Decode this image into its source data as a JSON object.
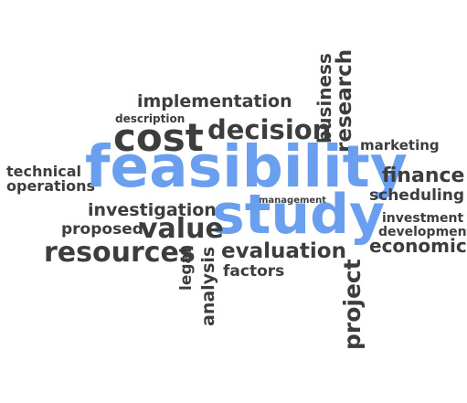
{
  "words": {
    "implementation": "implementation",
    "description": "description",
    "cost": "cost",
    "decision": "decision",
    "business": "business",
    "research": "research",
    "marketing": "marketing",
    "technical": "technical",
    "operations": "operations",
    "feasibility": "feasibility",
    "finance": "finance",
    "management": "management",
    "scheduling": "scheduling",
    "investigation": "investigation",
    "study": "study",
    "investment": "investment",
    "proposed": "proposed",
    "value": "value",
    "development": "development",
    "economic": "economic",
    "resources": "resources",
    "evaluation": "evaluation",
    "legal": "legal",
    "analysis": "analysis",
    "factors": "factors",
    "project": "project"
  },
  "colors": {
    "primary_text": "#3d3d3d",
    "highlight_text": "#6a9ff0",
    "background": "#ffffff"
  }
}
